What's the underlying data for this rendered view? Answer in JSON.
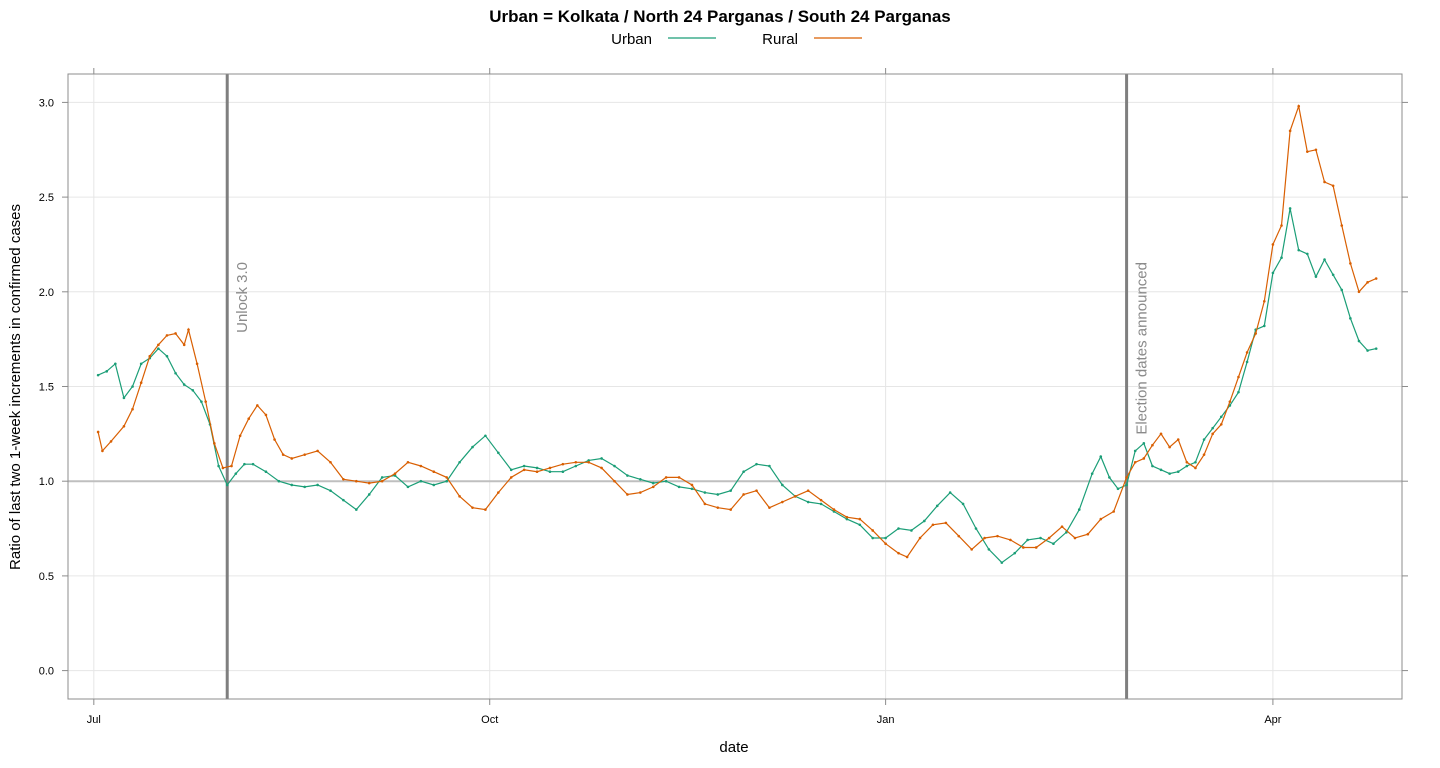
{
  "chart_data": {
    "type": "line",
    "title": "Urban = Kolkata / North 24 Parganas / South 24 Parganas",
    "xlabel": "date",
    "ylabel": "Ratio of last two 1-week increments in confirmed cases",
    "x_range": [
      "2020-06-25",
      "2021-05-01"
    ],
    "ylim": [
      -0.15,
      3.15
    ],
    "x_ticks": [
      {
        "date": "2020-07-01",
        "label": "Jul"
      },
      {
        "date": "2020-10-01",
        "label": "Oct"
      },
      {
        "date": "2021-01-01",
        "label": "Jan"
      },
      {
        "date": "2021-04-01",
        "label": "Apr"
      }
    ],
    "y_ticks": [
      {
        "value": 0.0,
        "label": "0.0"
      },
      {
        "value": 0.5,
        "label": "0.5"
      },
      {
        "value": 1.0,
        "label": "1.0"
      },
      {
        "value": 1.5,
        "label": "1.5"
      },
      {
        "value": 2.0,
        "label": "2.0"
      },
      {
        "value": 2.5,
        "label": "2.5"
      },
      {
        "value": 3.0,
        "label": "3.0"
      }
    ],
    "grid": true,
    "legend_position": "top",
    "reference_line": {
      "y": 1.0,
      "color": "#bfbfbf"
    },
    "events": [
      {
        "date": "2020-08-01",
        "label": "Unlock 3.0"
      },
      {
        "date": "2021-02-26",
        "label": "Election dates announced"
      }
    ],
    "series": [
      {
        "name": "Urban",
        "color": "#1b9e77",
        "points": [
          [
            "2020-07-02",
            1.56
          ],
          [
            "2020-07-04",
            1.58
          ],
          [
            "2020-07-06",
            1.62
          ],
          [
            "2020-07-08",
            1.44
          ],
          [
            "2020-07-10",
            1.5
          ],
          [
            "2020-07-12",
            1.62
          ],
          [
            "2020-07-14",
            1.65
          ],
          [
            "2020-07-16",
            1.7
          ],
          [
            "2020-07-18",
            1.66
          ],
          [
            "2020-07-20",
            1.57
          ],
          [
            "2020-07-22",
            1.51
          ],
          [
            "2020-07-24",
            1.48
          ],
          [
            "2020-07-26",
            1.42
          ],
          [
            "2020-07-28",
            1.3
          ],
          [
            "2020-07-30",
            1.08
          ],
          [
            "2020-08-01",
            0.98
          ],
          [
            "2020-08-03",
            1.04
          ],
          [
            "2020-08-05",
            1.09
          ],
          [
            "2020-08-07",
            1.09
          ],
          [
            "2020-08-10",
            1.05
          ],
          [
            "2020-08-13",
            1.0
          ],
          [
            "2020-08-16",
            0.98
          ],
          [
            "2020-08-19",
            0.97
          ],
          [
            "2020-08-22",
            0.98
          ],
          [
            "2020-08-25",
            0.95
          ],
          [
            "2020-08-28",
            0.9
          ],
          [
            "2020-08-31",
            0.85
          ],
          [
            "2020-09-03",
            0.93
          ],
          [
            "2020-09-06",
            1.02
          ],
          [
            "2020-09-09",
            1.03
          ],
          [
            "2020-09-12",
            0.97
          ],
          [
            "2020-09-15",
            1.0
          ],
          [
            "2020-09-18",
            0.98
          ],
          [
            "2020-09-21",
            1.0
          ],
          [
            "2020-09-24",
            1.1
          ],
          [
            "2020-09-27",
            1.18
          ],
          [
            "2020-09-30",
            1.24
          ],
          [
            "2020-10-03",
            1.15
          ],
          [
            "2020-10-06",
            1.06
          ],
          [
            "2020-10-09",
            1.08
          ],
          [
            "2020-10-12",
            1.07
          ],
          [
            "2020-10-15",
            1.05
          ],
          [
            "2020-10-18",
            1.05
          ],
          [
            "2020-10-21",
            1.08
          ],
          [
            "2020-10-24",
            1.11
          ],
          [
            "2020-10-27",
            1.12
          ],
          [
            "2020-10-30",
            1.08
          ],
          [
            "2020-11-02",
            1.03
          ],
          [
            "2020-11-05",
            1.01
          ],
          [
            "2020-11-08",
            0.99
          ],
          [
            "2020-11-11",
            1.0
          ],
          [
            "2020-11-14",
            0.97
          ],
          [
            "2020-11-17",
            0.96
          ],
          [
            "2020-11-20",
            0.94
          ],
          [
            "2020-11-23",
            0.93
          ],
          [
            "2020-11-26",
            0.95
          ],
          [
            "2020-11-29",
            1.05
          ],
          [
            "2020-12-02",
            1.09
          ],
          [
            "2020-12-05",
            1.08
          ],
          [
            "2020-12-08",
            0.98
          ],
          [
            "2020-12-11",
            0.92
          ],
          [
            "2020-12-14",
            0.89
          ],
          [
            "2020-12-17",
            0.88
          ],
          [
            "2020-12-20",
            0.84
          ],
          [
            "2020-12-23",
            0.8
          ],
          [
            "2020-12-26",
            0.77
          ],
          [
            "2020-12-29",
            0.7
          ],
          [
            "2021-01-01",
            0.7
          ],
          [
            "2021-01-04",
            0.75
          ],
          [
            "2021-01-07",
            0.74
          ],
          [
            "2021-01-10",
            0.79
          ],
          [
            "2021-01-13",
            0.87
          ],
          [
            "2021-01-16",
            0.94
          ],
          [
            "2021-01-19",
            0.88
          ],
          [
            "2021-01-22",
            0.75
          ],
          [
            "2021-01-25",
            0.64
          ],
          [
            "2021-01-28",
            0.57
          ],
          [
            "2021-01-31",
            0.62
          ],
          [
            "2021-02-03",
            0.69
          ],
          [
            "2021-02-06",
            0.7
          ],
          [
            "2021-02-09",
            0.67
          ],
          [
            "2021-02-12",
            0.73
          ],
          [
            "2021-02-15",
            0.85
          ],
          [
            "2021-02-18",
            1.04
          ],
          [
            "2021-02-20",
            1.13
          ],
          [
            "2021-02-22",
            1.02
          ],
          [
            "2021-02-24",
            0.96
          ],
          [
            "2021-02-26",
            0.98
          ],
          [
            "2021-02-28",
            1.16
          ],
          [
            "2021-03-02",
            1.2
          ],
          [
            "2021-03-04",
            1.08
          ],
          [
            "2021-03-06",
            1.06
          ],
          [
            "2021-03-08",
            1.04
          ],
          [
            "2021-03-10",
            1.05
          ],
          [
            "2021-03-12",
            1.08
          ],
          [
            "2021-03-14",
            1.1
          ],
          [
            "2021-03-16",
            1.22
          ],
          [
            "2021-03-18",
            1.28
          ],
          [
            "2021-03-20",
            1.34
          ],
          [
            "2021-03-22",
            1.4
          ],
          [
            "2021-03-24",
            1.47
          ],
          [
            "2021-03-26",
            1.63
          ],
          [
            "2021-03-28",
            1.8
          ],
          [
            "2021-03-30",
            1.82
          ],
          [
            "2021-04-01",
            2.1
          ],
          [
            "2021-04-03",
            2.18
          ],
          [
            "2021-04-05",
            2.44
          ],
          [
            "2021-04-07",
            2.22
          ],
          [
            "2021-04-09",
            2.2
          ],
          [
            "2021-04-11",
            2.08
          ],
          [
            "2021-04-13",
            2.17
          ],
          [
            "2021-04-15",
            2.09
          ],
          [
            "2021-04-17",
            2.01
          ],
          [
            "2021-04-19",
            1.86
          ],
          [
            "2021-04-21",
            1.74
          ],
          [
            "2021-04-23",
            1.69
          ],
          [
            "2021-04-25",
            1.7
          ]
        ]
      },
      {
        "name": "Rural",
        "color": "#d95f02",
        "points": [
          [
            "2020-07-02",
            1.26
          ],
          [
            "2020-07-03",
            1.16
          ],
          [
            "2020-07-05",
            1.21
          ],
          [
            "2020-07-08",
            1.29
          ],
          [
            "2020-07-10",
            1.38
          ],
          [
            "2020-07-12",
            1.52
          ],
          [
            "2020-07-14",
            1.66
          ],
          [
            "2020-07-16",
            1.72
          ],
          [
            "2020-07-18",
            1.77
          ],
          [
            "2020-07-20",
            1.78
          ],
          [
            "2020-07-22",
            1.72
          ],
          [
            "2020-07-23",
            1.8
          ],
          [
            "2020-07-25",
            1.62
          ],
          [
            "2020-07-27",
            1.42
          ],
          [
            "2020-07-29",
            1.2
          ],
          [
            "2020-07-31",
            1.07
          ],
          [
            "2020-08-02",
            1.08
          ],
          [
            "2020-08-04",
            1.24
          ],
          [
            "2020-08-06",
            1.33
          ],
          [
            "2020-08-08",
            1.4
          ],
          [
            "2020-08-10",
            1.35
          ],
          [
            "2020-08-12",
            1.22
          ],
          [
            "2020-08-14",
            1.14
          ],
          [
            "2020-08-16",
            1.12
          ],
          [
            "2020-08-19",
            1.14
          ],
          [
            "2020-08-22",
            1.16
          ],
          [
            "2020-08-25",
            1.1
          ],
          [
            "2020-08-28",
            1.01
          ],
          [
            "2020-08-31",
            1.0
          ],
          [
            "2020-09-03",
            0.99
          ],
          [
            "2020-09-06",
            1.0
          ],
          [
            "2020-09-09",
            1.04
          ],
          [
            "2020-09-12",
            1.1
          ],
          [
            "2020-09-15",
            1.08
          ],
          [
            "2020-09-18",
            1.05
          ],
          [
            "2020-09-21",
            1.02
          ],
          [
            "2020-09-24",
            0.92
          ],
          [
            "2020-09-27",
            0.86
          ],
          [
            "2020-09-30",
            0.85
          ],
          [
            "2020-10-03",
            0.94
          ],
          [
            "2020-10-06",
            1.02
          ],
          [
            "2020-10-09",
            1.06
          ],
          [
            "2020-10-12",
            1.05
          ],
          [
            "2020-10-15",
            1.07
          ],
          [
            "2020-10-18",
            1.09
          ],
          [
            "2020-10-21",
            1.1
          ],
          [
            "2020-10-24",
            1.1
          ],
          [
            "2020-10-27",
            1.07
          ],
          [
            "2020-10-30",
            1.0
          ],
          [
            "2020-11-02",
            0.93
          ],
          [
            "2020-11-05",
            0.94
          ],
          [
            "2020-11-08",
            0.97
          ],
          [
            "2020-11-11",
            1.02
          ],
          [
            "2020-11-14",
            1.02
          ],
          [
            "2020-11-17",
            0.98
          ],
          [
            "2020-11-20",
            0.88
          ],
          [
            "2020-11-23",
            0.86
          ],
          [
            "2020-11-26",
            0.85
          ],
          [
            "2020-11-29",
            0.93
          ],
          [
            "2020-12-02",
            0.95
          ],
          [
            "2020-12-05",
            0.86
          ],
          [
            "2020-12-08",
            0.89
          ],
          [
            "2020-12-11",
            0.92
          ],
          [
            "2020-12-14",
            0.95
          ],
          [
            "2020-12-17",
            0.9
          ],
          [
            "2020-12-20",
            0.85
          ],
          [
            "2020-12-23",
            0.81
          ],
          [
            "2020-12-26",
            0.8
          ],
          [
            "2020-12-29",
            0.74
          ],
          [
            "2021-01-01",
            0.67
          ],
          [
            "2021-01-04",
            0.62
          ],
          [
            "2021-01-06",
            0.6
          ],
          [
            "2021-01-09",
            0.7
          ],
          [
            "2021-01-12",
            0.77
          ],
          [
            "2021-01-15",
            0.78
          ],
          [
            "2021-01-18",
            0.71
          ],
          [
            "2021-01-21",
            0.64
          ],
          [
            "2021-01-24",
            0.7
          ],
          [
            "2021-01-27",
            0.71
          ],
          [
            "2021-01-30",
            0.69
          ],
          [
            "2021-02-02",
            0.65
          ],
          [
            "2021-02-05",
            0.65
          ],
          [
            "2021-02-08",
            0.7
          ],
          [
            "2021-02-11",
            0.76
          ],
          [
            "2021-02-14",
            0.7
          ],
          [
            "2021-02-17",
            0.72
          ],
          [
            "2021-02-20",
            0.8
          ],
          [
            "2021-02-23",
            0.84
          ],
          [
            "2021-02-26",
            1.02
          ],
          [
            "2021-02-28",
            1.1
          ],
          [
            "2021-03-02",
            1.12
          ],
          [
            "2021-03-04",
            1.19
          ],
          [
            "2021-03-06",
            1.25
          ],
          [
            "2021-03-08",
            1.18
          ],
          [
            "2021-03-10",
            1.22
          ],
          [
            "2021-03-12",
            1.1
          ],
          [
            "2021-03-14",
            1.07
          ],
          [
            "2021-03-16",
            1.14
          ],
          [
            "2021-03-18",
            1.25
          ],
          [
            "2021-03-20",
            1.3
          ],
          [
            "2021-03-22",
            1.42
          ],
          [
            "2021-03-24",
            1.55
          ],
          [
            "2021-03-26",
            1.68
          ],
          [
            "2021-03-28",
            1.78
          ],
          [
            "2021-03-30",
            1.95
          ],
          [
            "2021-04-01",
            2.25
          ],
          [
            "2021-04-03",
            2.35
          ],
          [
            "2021-04-05",
            2.85
          ],
          [
            "2021-04-07",
            2.98
          ],
          [
            "2021-04-09",
            2.74
          ],
          [
            "2021-04-11",
            2.75
          ],
          [
            "2021-04-13",
            2.58
          ],
          [
            "2021-04-15",
            2.56
          ],
          [
            "2021-04-17",
            2.35
          ],
          [
            "2021-04-19",
            2.15
          ],
          [
            "2021-04-21",
            2.0
          ],
          [
            "2021-04-23",
            2.05
          ],
          [
            "2021-04-25",
            2.07
          ]
        ]
      }
    ]
  }
}
